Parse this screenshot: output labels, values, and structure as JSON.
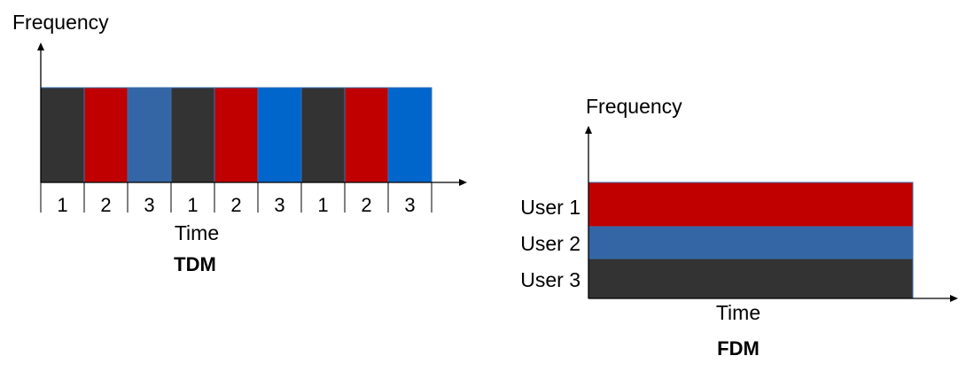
{
  "tdm": {
    "y_axis_label": "Frequency",
    "x_axis_label": "Time",
    "caption": "TDM",
    "slots": [
      {
        "label": "1",
        "color": "#333333"
      },
      {
        "label": "2",
        "color": "#c00000"
      },
      {
        "label": "3",
        "color": "#3465a4"
      },
      {
        "label": "1",
        "color": "#333333"
      },
      {
        "label": "2",
        "color": "#c00000"
      },
      {
        "label": "3",
        "color": "#0066cc"
      },
      {
        "label": "1",
        "color": "#333333"
      },
      {
        "label": "2",
        "color": "#c00000"
      },
      {
        "label": "3",
        "color": "#0066cc"
      }
    ]
  },
  "fdm": {
    "y_axis_label": "Frequency",
    "x_axis_label": "Time",
    "caption": "FDM",
    "bands": [
      {
        "label": "User 1",
        "color": "#c00000"
      },
      {
        "label": "User 2",
        "color": "#3465a4"
      },
      {
        "label": "User 3",
        "color": "#333333"
      }
    ]
  }
}
